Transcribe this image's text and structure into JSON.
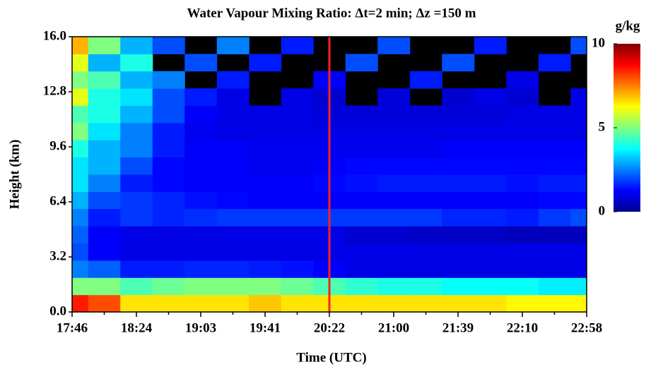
{
  "chart_data": {
    "type": "heatmap",
    "title": "Water Vapour Mixing Ratio: Δt=2 min; Δz =150 m",
    "xlabel": "Time (UTC)",
    "ylabel": "Height (km)",
    "categories": [
      "17:46",
      null,
      "18:24",
      null,
      "19:03",
      null,
      "19:41",
      null,
      "20:22",
      null,
      "21:00",
      null,
      "21:39",
      null,
      "22:10",
      null,
      "22:58"
    ],
    "y": [
      0.5,
      1.5,
      2.5,
      3.5,
      4.5,
      5.5,
      6.5,
      7.5,
      8.5,
      9.5,
      10.5,
      11.5,
      12.5,
      13.5,
      14.5,
      15.5
    ],
    "ylim": [
      0,
      16
    ],
    "yticks": [
      {
        "value": 0,
        "label": "0.0"
      },
      3.2,
      6.4,
      9.6,
      12.8,
      {
        "value": 16,
        "label": "16.0"
      }
    ],
    "z": [
      [
        8.5,
        8,
        6.5,
        6.5,
        6.5,
        6.5,
        6.8,
        6.5,
        6.5,
        6.5,
        6.5,
        6.5,
        6.5,
        6.5,
        6.3,
        6.3,
        6.3
      ],
      [
        5,
        5,
        4.5,
        4.8,
        5,
        5,
        5,
        4.8,
        4.5,
        4.2,
        4,
        4,
        3.8,
        3.8,
        3.8,
        3.6,
        3.6
      ],
      [
        2.5,
        2.2,
        1.5,
        1.5,
        1.6,
        1.6,
        1.5,
        1.4,
        1.2,
        1,
        1,
        1,
        1,
        1,
        1,
        1,
        1
      ],
      [
        2,
        1.2,
        1,
        1,
        1,
        1,
        1,
        1,
        1,
        1,
        1,
        1,
        1,
        1,
        1,
        1,
        1
      ],
      [
        2.2,
        1.2,
        1,
        1,
        1,
        1,
        1,
        1,
        1,
        0.8,
        0.8,
        0.7,
        0.7,
        0.7,
        0.6,
        0.6,
        0.6
      ],
      [
        2.5,
        1.5,
        1.8,
        1.6,
        1.7,
        1.8,
        1.8,
        1.8,
        1.8,
        1.8,
        1.8,
        1.8,
        1.6,
        1.6,
        1.5,
        1.8,
        2
      ],
      [
        3,
        2,
        1.8,
        1.6,
        1.4,
        1.3,
        1.2,
        1.2,
        1.2,
        1.2,
        1.2,
        1.2,
        1.2,
        1.2,
        1.2,
        1.3,
        1.3
      ],
      [
        3.5,
        2.5,
        1.5,
        1.3,
        1.2,
        1.2,
        1.2,
        1.2,
        1.3,
        1.4,
        1.5,
        1.5,
        1.5,
        1.5,
        1.4,
        1.5,
        1.5
      ],
      [
        3.5,
        3,
        2,
        1.3,
        1.2,
        1.2,
        1.1,
        1.1,
        1.2,
        1.3,
        1.3,
        1.3,
        1.3,
        1.3,
        1.3,
        1.3,
        1.3
      ],
      [
        4,
        3,
        2.5,
        1.5,
        1.2,
        1.2,
        1.1,
        1.1,
        1.1,
        1.1,
        1.1,
        1.1,
        1.2,
        1.2,
        1.2,
        1.2,
        1.2
      ],
      [
        5,
        3.5,
        2.5,
        1.5,
        1.1,
        1,
        1,
        1,
        1,
        1,
        1,
        1,
        1,
        1,
        1,
        1,
        1
      ],
      [
        4.5,
        4,
        3,
        2,
        1.2,
        1,
        1,
        1,
        0.9,
        0.9,
        0.9,
        0.9,
        0.9,
        0.9,
        1,
        1,
        1
      ],
      [
        6,
        4,
        3.5,
        2,
        1.5,
        1,
        null,
        1,
        0.8,
        null,
        0.9,
        null,
        0.8,
        1,
        0.8,
        null,
        1
      ],
      [
        5,
        4.5,
        3,
        2.5,
        null,
        1.5,
        null,
        null,
        1.2,
        null,
        null,
        1.5,
        null,
        null,
        1,
        null,
        null
      ],
      [
        6,
        3,
        4,
        null,
        2,
        null,
        1.5,
        null,
        null,
        2,
        null,
        null,
        2,
        null,
        null,
        1.5,
        null
      ],
      [
        7,
        5,
        3,
        2,
        null,
        2.5,
        null,
        1.5,
        null,
        null,
        2,
        null,
        null,
        1.5,
        null,
        null,
        2
      ]
    ],
    "colorscale": "jet",
    "colorbar_label": "g/kg",
    "clim": [
      0,
      10
    ],
    "cticks": [
      0,
      5,
      10
    ]
  }
}
